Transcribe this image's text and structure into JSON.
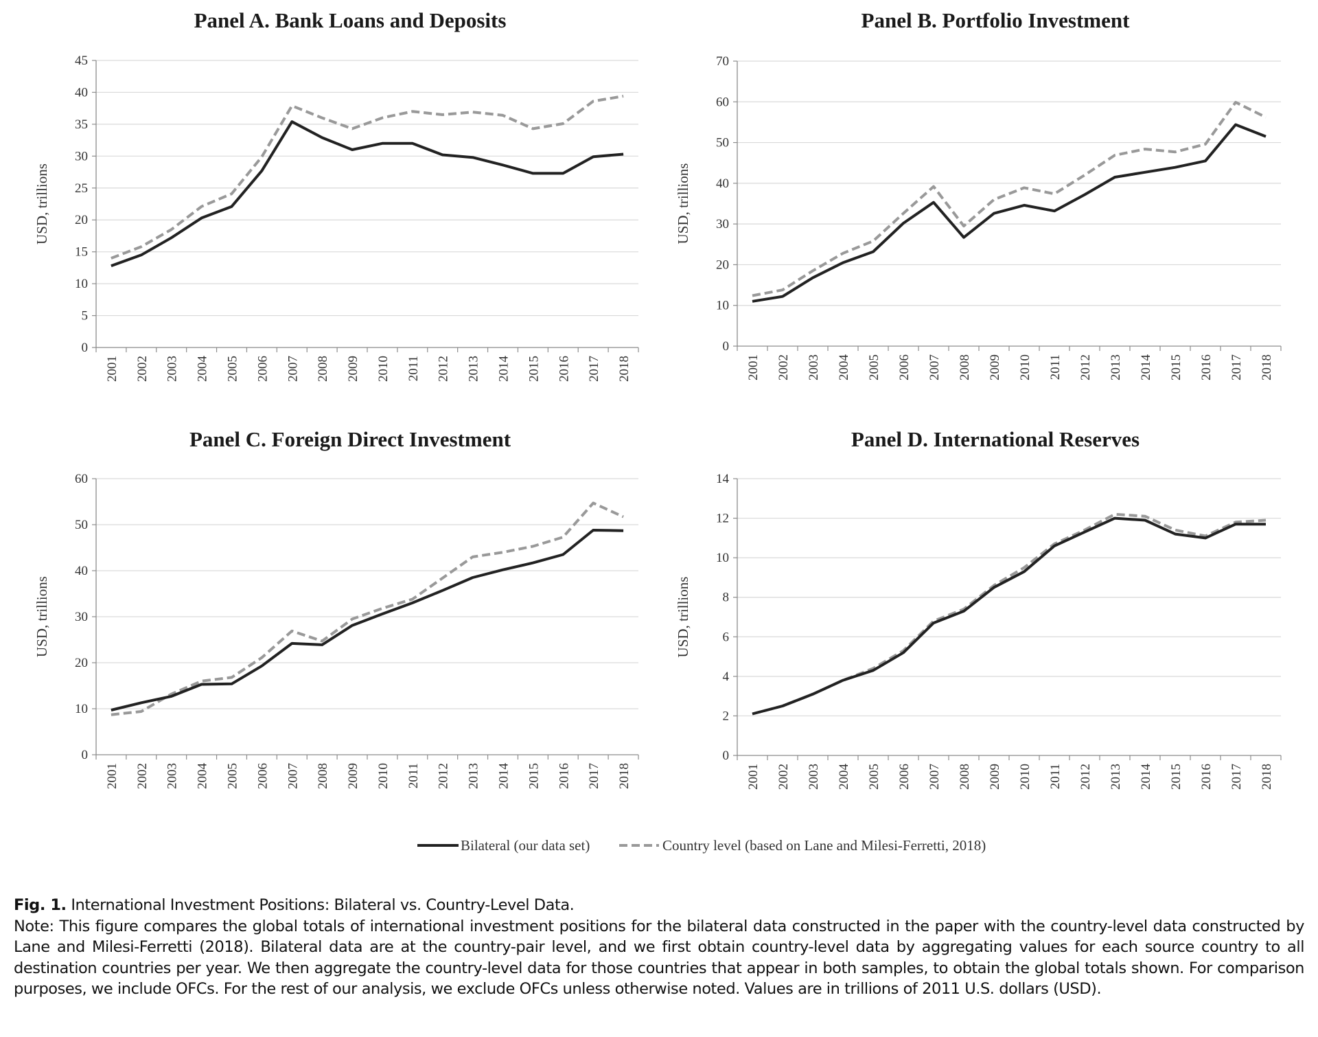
{
  "chart_data": [
    {
      "type": "line",
      "title": "Panel A. Bank Loans and Deposits",
      "ylabel": "USD, trillions",
      "ylim": [
        0,
        45
      ],
      "yticks": [
        0,
        5,
        10,
        15,
        20,
        25,
        30,
        35,
        40,
        45
      ],
      "categories": [
        "2001",
        "2002",
        "2003",
        "2004",
        "2005",
        "2006",
        "2007",
        "2008",
        "2009",
        "2010",
        "2011",
        "2012",
        "2013",
        "2014",
        "2015",
        "2016",
        "2017",
        "2018"
      ],
      "grid": true,
      "series": [
        {
          "name": "Bilateral (our data set)",
          "color": "#222222",
          "dash": false,
          "values": [
            12.8,
            14.5,
            17.2,
            20.3,
            22.1,
            27.7,
            35.4,
            32.9,
            31.0,
            32.0,
            32.0,
            30.2,
            29.8,
            28.6,
            27.3,
            27.3,
            29.9,
            30.3
          ]
        },
        {
          "name": "Country level (based on Lane and Milesi-Ferretti, 2018)",
          "color": "#999999",
          "dash": true,
          "values": [
            14.0,
            15.8,
            18.5,
            22.1,
            24.1,
            29.9,
            37.9,
            36.0,
            34.3,
            36.0,
            37.0,
            36.5,
            36.9,
            36.4,
            34.3,
            35.1,
            38.6,
            39.4
          ]
        }
      ]
    },
    {
      "type": "line",
      "title": "Panel B. Portfolio Investment",
      "ylabel": "USD, trillions",
      "ylim": [
        0,
        70
      ],
      "yticks": [
        0,
        10,
        20,
        30,
        40,
        50,
        60,
        70
      ],
      "categories": [
        "2001",
        "2002",
        "2003",
        "2004",
        "2005",
        "2006",
        "2007",
        "2008",
        "2009",
        "2010",
        "2011",
        "2012",
        "2013",
        "2014",
        "2015",
        "2016",
        "2017",
        "2018"
      ],
      "grid": true,
      "series": [
        {
          "name": "Bilateral (our data set)",
          "color": "#222222",
          "dash": false,
          "values": [
            11.0,
            12.2,
            16.8,
            20.5,
            23.2,
            30.2,
            35.3,
            26.7,
            32.6,
            34.6,
            33.2,
            37.2,
            41.5,
            42.7,
            43.9,
            45.5,
            54.4,
            51.5
          ]
        },
        {
          "name": "Country level (based on Lane and Milesi-Ferretti, 2018)",
          "color": "#999999",
          "dash": true,
          "values": [
            12.4,
            13.8,
            18.5,
            22.8,
            25.8,
            32.6,
            39.2,
            29.5,
            36.0,
            38.9,
            37.4,
            42.0,
            46.9,
            48.4,
            47.7,
            49.6,
            59.9,
            56.2
          ]
        }
      ]
    },
    {
      "type": "line",
      "title": "Panel C. Foreign Direct Investment",
      "ylabel": "USD, trillions",
      "ylim": [
        0,
        60
      ],
      "yticks": [
        0,
        10,
        20,
        30,
        40,
        50,
        60
      ],
      "categories": [
        "2001",
        "2002",
        "2003",
        "2004",
        "2005",
        "2006",
        "2007",
        "2008",
        "2009",
        "2010",
        "2011",
        "2012",
        "2013",
        "2014",
        "2015",
        "2016",
        "2017",
        "2018"
      ],
      "grid": true,
      "series": [
        {
          "name": "Bilateral (our data set)",
          "color": "#222222",
          "dash": false,
          "values": [
            9.7,
            11.3,
            12.7,
            15.3,
            15.4,
            19.3,
            24.2,
            23.9,
            28.1,
            30.6,
            33.0,
            35.7,
            38.5,
            40.2,
            41.7,
            43.5,
            48.8,
            48.7
          ]
        },
        {
          "name": "Country level (based on Lane and Milesi-Ferretti, 2018)",
          "color": "#999999",
          "dash": true,
          "values": [
            8.7,
            9.4,
            13.2,
            16.0,
            16.8,
            21.1,
            26.9,
            24.7,
            29.5,
            31.8,
            33.8,
            38.4,
            43.0,
            44.0,
            45.3,
            47.3,
            54.7,
            51.7
          ]
        }
      ]
    },
    {
      "type": "line",
      "title": "Panel D. International Reserves",
      "ylabel": "USD, trillions",
      "ylim": [
        0,
        14
      ],
      "yticks": [
        0,
        2,
        4,
        6,
        8,
        10,
        12,
        14
      ],
      "categories": [
        "2001",
        "2002",
        "2003",
        "2004",
        "2005",
        "2006",
        "2007",
        "2008",
        "2009",
        "2010",
        "2011",
        "2012",
        "2013",
        "2014",
        "2015",
        "2016",
        "2017",
        "2018"
      ],
      "grid": true,
      "series": [
        {
          "name": "Bilateral (our data set)",
          "color": "#222222",
          "dash": false,
          "values": [
            2.1,
            2.5,
            3.1,
            3.8,
            4.3,
            5.2,
            6.7,
            7.3,
            8.5,
            9.3,
            10.6,
            11.3,
            12.0,
            11.9,
            11.2,
            11.0,
            11.7,
            11.7
          ]
        },
        {
          "name": "Country level (based on Lane and Milesi-Ferretti, 2018)",
          "color": "#999999",
          "dash": true,
          "values": [
            2.1,
            2.5,
            3.1,
            3.8,
            4.4,
            5.3,
            6.8,
            7.4,
            8.6,
            9.5,
            10.7,
            11.4,
            12.2,
            12.1,
            11.4,
            11.1,
            11.8,
            11.9
          ]
        }
      ]
    }
  ],
  "legend": {
    "placement": "bottom-center",
    "items": [
      {
        "label": "Bilateral (our data set)",
        "color": "#222222",
        "dash": false
      },
      {
        "label": "Country level (based on Lane and Milesi-Ferretti, 2018)",
        "color": "#999999",
        "dash": true
      }
    ]
  },
  "caption": {
    "fig_label": "Fig. 1.",
    "title": " International Investment Positions: Bilateral vs. Country-Level Data.",
    "note": "Note: This figure compares the global totals of international investment positions for the bilateral data constructed in the paper with the country-level data constructed by Lane and Milesi-Ferretti (2018). Bilateral data are at the country-pair level, and we first obtain country-level data by aggregating values for each source country to all destination countries per year. We then aggregate the country-level data for those countries that appear in both samples, to obtain the global totals shown. For comparison purposes, we include OFCs. For the rest of our analysis, we exclude OFCs unless otherwise noted. Values are in trillions of 2011 U.S. dollars (USD)."
  }
}
